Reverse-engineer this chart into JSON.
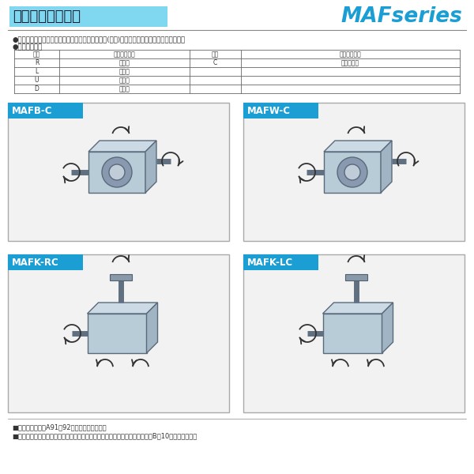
{
  "title": "軸配置と回転方向",
  "title_bg": "#7fd8f0",
  "brand": "MAFseries",
  "brand_color": "#1a9ed4",
  "bg_color": "#ffffff",
  "border_color": "#cccccc",
  "text_color": "#333333",
  "bullet_text1": "●軸配置は入力軸またはモータを手前にして出力軸(青色)の出ている方向で決定して下さい。",
  "bullet_text2": "●軸配置の記号",
  "table_headers": [
    "記号",
    "出力軸の方向",
    "記号",
    "出力軸の方向"
  ],
  "table_rows": [
    [
      "R",
      "右　側",
      "C",
      "出力軸両端"
    ],
    [
      "L",
      "左　側",
      "",
      ""
    ],
    [
      "U",
      "上　側",
      "",
      ""
    ],
    [
      "D",
      "下　側",
      "",
      ""
    ]
  ],
  "box_labels": [
    "MAFB-C",
    "MAFW-C",
    "MAFK-RC",
    "MAFK-LC"
  ],
  "box_label_bg": "#1a9ed4",
  "box_label_color": "#ffffff",
  "footer1": "■軸配置の詳細はA91・92を参照して下さい。",
  "footer2": "■特殊な取付状態については、当社へお問い合わせ下さい。なお、参考としてB－10をご覧下さい。"
}
